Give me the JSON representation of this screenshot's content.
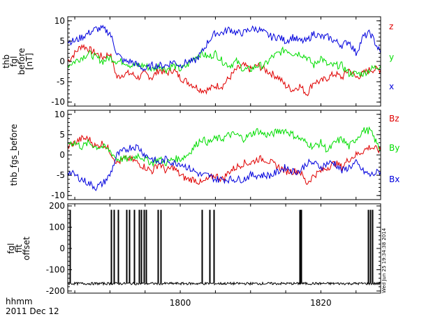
{
  "colors": {
    "red": "#e00000",
    "green": "#00dd00",
    "blue": "#0000dd",
    "black": "#000000"
  },
  "chart_data": [
    {
      "type": "line",
      "panel": "top",
      "ylabel_lines": [
        "thb",
        "fgl",
        "before",
        "[nT]"
      ],
      "ylim": [
        -11,
        11
      ],
      "yticks": [
        -10,
        -5,
        0,
        5,
        10
      ],
      "xlim": [
        1784,
        1828.5
      ],
      "series": [
        {
          "name": "z",
          "color": "#e00000",
          "x": [
            1784,
            1785,
            1786,
            1787,
            1788,
            1789,
            1790,
            1791,
            1792,
            1793,
            1794,
            1795,
            1796,
            1797,
            1798,
            1799,
            1800,
            1801,
            1802,
            1803,
            1804,
            1805,
            1806,
            1807,
            1808,
            1809,
            1810,
            1811,
            1812,
            1813,
            1814,
            1815,
            1816,
            1817,
            1818,
            1819,
            1820,
            1821,
            1822,
            1823,
            1824,
            1825,
            1826,
            1827,
            1828.5
          ],
          "values": [
            0,
            2,
            4,
            3,
            2,
            1,
            2,
            -4,
            -3,
            -3,
            -4,
            -3,
            -4,
            -2,
            -3,
            -2,
            -4,
            -5,
            -6,
            -7,
            -7,
            -6,
            -6,
            -4,
            -2,
            -1,
            -2,
            -1,
            -2,
            -3,
            -4,
            -6,
            -7,
            -6,
            -8,
            -5,
            -5,
            -4,
            -3,
            -4,
            -2,
            -4,
            -3,
            -2,
            -2
          ]
        },
        {
          "name": "y",
          "color": "#00dd00",
          "x": [
            1784,
            1785,
            1786,
            1787,
            1788,
            1789,
            1790,
            1791,
            1792,
            1793,
            1794,
            1795,
            1796,
            1797,
            1798,
            1799,
            1800,
            1801,
            1802,
            1803,
            1804,
            1805,
            1806,
            1807,
            1808,
            1809,
            1810,
            1811,
            1812,
            1813,
            1814,
            1815,
            1816,
            1817,
            1818,
            1819,
            1820,
            1821,
            1822,
            1823,
            1824,
            1825,
            1826,
            1827,
            1828.5
          ],
          "values": [
            -1,
            0,
            1,
            2,
            1,
            0,
            1,
            0,
            0,
            -1,
            -1,
            -1,
            -2,
            -1,
            -2,
            -1,
            -2,
            -1,
            1,
            2,
            1,
            2,
            0,
            -1,
            0,
            -2,
            -2,
            -1,
            -1,
            1,
            2,
            3,
            2,
            2,
            1,
            -1,
            1,
            -1,
            -1,
            -1,
            -3,
            -3,
            -3,
            -2,
            -1
          ]
        },
        {
          "name": "x",
          "color": "#0000dd",
          "x": [
            1784,
            1785,
            1786,
            1787,
            1788,
            1789,
            1790,
            1791,
            1792,
            1793,
            1794,
            1795,
            1796,
            1797,
            1798,
            1799,
            1800,
            1801,
            1802,
            1803,
            1804,
            1805,
            1806,
            1807,
            1808,
            1809,
            1810,
            1811,
            1812,
            1813,
            1814,
            1815,
            1816,
            1817,
            1818,
            1819,
            1820,
            1821,
            1822,
            1823,
            1824,
            1825,
            1826,
            1827,
            1828.5
          ],
          "values": [
            5,
            5,
            6,
            7,
            8,
            8,
            7,
            2,
            0,
            0,
            -1,
            -2,
            -1,
            -1,
            -1,
            0,
            -1,
            0,
            0,
            2,
            5,
            7,
            7,
            8,
            7,
            7,
            8,
            8,
            7,
            6,
            6,
            5,
            6,
            5,
            5,
            7,
            6,
            6,
            5,
            4,
            5,
            2,
            6,
            7,
            2
          ]
        }
      ]
    },
    {
      "type": "line",
      "panel": "middle",
      "ylabel_lines": [
        "thb_fgs_before"
      ],
      "ylim": [
        -11,
        11
      ],
      "yticks": [
        -10,
        -5,
        0,
        5,
        10
      ],
      "xlim": [
        1784,
        1828.5
      ],
      "series": [
        {
          "name": "Bz",
          "color": "#e00000",
          "x": [
            1784,
            1785,
            1786,
            1787,
            1788,
            1789,
            1790,
            1791,
            1792,
            1793,
            1794,
            1795,
            1796,
            1797,
            1798,
            1799,
            1800,
            1801,
            1802,
            1803,
            1804,
            1805,
            1806,
            1807,
            1808,
            1809,
            1810,
            1811,
            1812,
            1813,
            1814,
            1815,
            1816,
            1817,
            1818,
            1819,
            1820,
            1821,
            1822,
            1823,
            1824,
            1825,
            1826,
            1827,
            1828.5
          ],
          "values": [
            2,
            3,
            4,
            4,
            2,
            3,
            1,
            -2,
            -1,
            -1,
            -2,
            -3,
            -4,
            -2,
            -4,
            -3,
            -5,
            -6,
            -6,
            -7,
            -6,
            -5,
            -6,
            -4,
            -3,
            -2,
            -2,
            -1,
            -1,
            -2,
            -3,
            -4,
            -4,
            -4,
            -7,
            -5,
            -4,
            -3,
            -2,
            -3,
            -1,
            0,
            1,
            2,
            1
          ]
        },
        {
          "name": "By",
          "color": "#00dd00",
          "x": [
            1784,
            1785,
            1786,
            1787,
            1788,
            1789,
            1790,
            1791,
            1792,
            1793,
            1794,
            1795,
            1796,
            1797,
            1798,
            1799,
            1800,
            1801,
            1802,
            1803,
            1804,
            1805,
            1806,
            1807,
            1808,
            1809,
            1810,
            1811,
            1812,
            1813,
            1814,
            1815,
            1816,
            1817,
            1818,
            1819,
            1820,
            1821,
            1822,
            1823,
            1824,
            1825,
            1826,
            1827,
            1828.5
          ],
          "values": [
            3,
            3,
            2,
            3,
            2,
            2,
            1,
            -1,
            -1,
            -1,
            0,
            -1,
            -2,
            -1,
            -2,
            -1,
            -1,
            0,
            2,
            4,
            3,
            4,
            4,
            5,
            5,
            4,
            5,
            6,
            5,
            5,
            6,
            6,
            5,
            4,
            3,
            2,
            3,
            1,
            3,
            4,
            2,
            4,
            6,
            6,
            1
          ]
        },
        {
          "name": "Bx",
          "color": "#0000dd",
          "x": [
            1784,
            1785,
            1786,
            1787,
            1788,
            1789,
            1790,
            1791,
            1792,
            1793,
            1794,
            1795,
            1796,
            1797,
            1798,
            1799,
            1800,
            1801,
            1802,
            1803,
            1804,
            1805,
            1806,
            1807,
            1808,
            1809,
            1810,
            1811,
            1812,
            1813,
            1814,
            1815,
            1816,
            1817,
            1818,
            1819,
            1820,
            1821,
            1822,
            1823,
            1824,
            1825,
            1826,
            1827,
            1828.5
          ],
          "values": [
            -4,
            -5,
            -6,
            -7,
            -8,
            -7,
            -5,
            0,
            1,
            2,
            2,
            0,
            -1,
            -2,
            -1,
            -2,
            -2,
            -3,
            -4,
            -5,
            -5,
            -6,
            -6,
            -6,
            -6,
            -6,
            -5,
            -5,
            -5,
            -5,
            -4,
            -3,
            -4,
            -4,
            -2,
            -2,
            -3,
            -2,
            -2,
            -4,
            -3,
            -2,
            -4,
            -5,
            -4
          ]
        }
      ]
    },
    {
      "type": "line",
      "panel": "bottom",
      "ylabel_lines": [
        "fgl",
        "fit",
        "offset"
      ],
      "ylim": [
        -210,
        210
      ],
      "yticks": [
        -200,
        -100,
        0,
        100,
        200
      ],
      "xlim": [
        1784,
        1828.5
      ],
      "xticks": [
        1800,
        1820
      ],
      "baseline": -165,
      "spikes_x": [
        1784.3,
        1790.2,
        1790.6,
        1791.2,
        1792.3,
        1792.7,
        1793.4,
        1794.1,
        1794.4,
        1794.8,
        1795.1,
        1796.8,
        1797.2,
        1803.1,
        1804.2,
        1804.8,
        1817.0,
        1817.2,
        1826.7,
        1827.0,
        1827.3
      ],
      "spike_peak": 180,
      "series": [
        {
          "name": "",
          "color": "#000000",
          "x": [
            1784,
            1828.5
          ],
          "values": [
            -165,
            -165
          ]
        }
      ]
    }
  ],
  "legend": {
    "top": [
      {
        "label": "z",
        "color": "#e00000"
      },
      {
        "label": "y",
        "color": "#00dd00"
      },
      {
        "label": "x",
        "color": "#0000dd"
      }
    ],
    "middle": [
      {
        "label": "Bz",
        "color": "#e00000"
      },
      {
        "label": "By",
        "color": "#00dd00"
      },
      {
        "label": "Bx",
        "color": "#0000dd"
      }
    ]
  },
  "footer": {
    "time_format": "hhmm",
    "date": "2011 Dec 12",
    "timestamp": "Wed Jun 25 19:34:38 2014"
  }
}
